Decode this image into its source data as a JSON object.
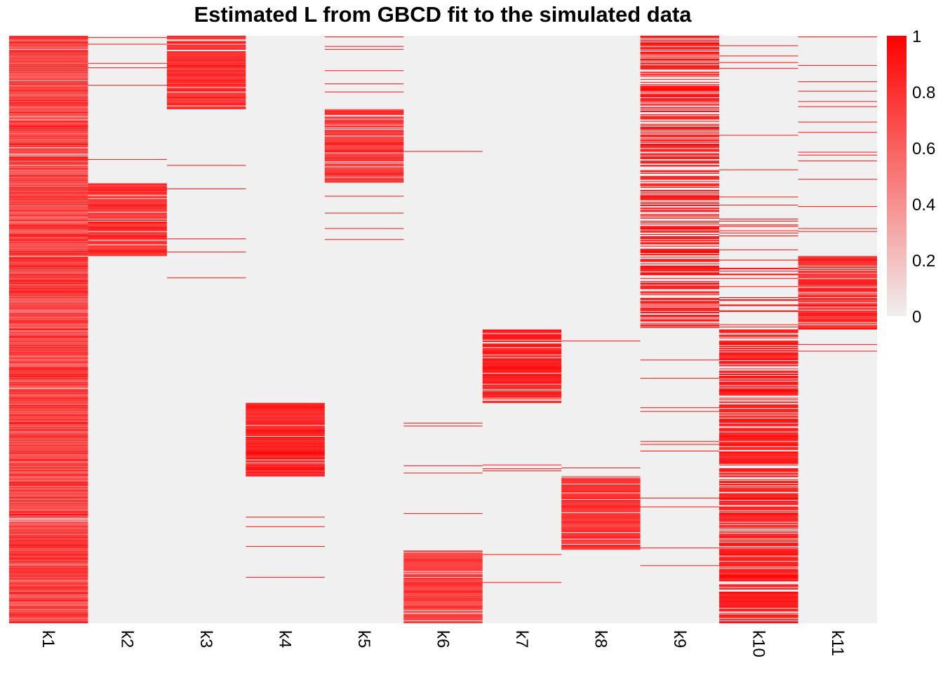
{
  "chart_data": {
    "type": "heatmap",
    "title": "Estimated L from GBCD fit to the simulated data",
    "columns": [
      "k1",
      "k2",
      "k3",
      "k4",
      "k5",
      "k6",
      "k7",
      "k8",
      "k9",
      "k10",
      "k11"
    ],
    "n_rows": 800,
    "value_range": [
      0,
      1
    ],
    "colorscale": {
      "low": "#F0F0F0",
      "high": "#FF0000"
    },
    "legend": {
      "position": "right",
      "tick_labels": [
        "1",
        "0.8",
        "0.6",
        "0.4",
        "0.2",
        "0"
      ],
      "tick_values": [
        1,
        0.8,
        0.6,
        0.4,
        0.2,
        0
      ]
    },
    "blocks": [
      {
        "column": "k1",
        "rows": [
          0,
          800
        ],
        "fill_fraction": 0.97,
        "intensity": [
          0.55,
          0.95
        ]
      },
      {
        "column": "k2",
        "rows": [
          200,
          300
        ],
        "fill_fraction": 0.9,
        "intensity": [
          0.75,
          0.95
        ]
      },
      {
        "column": "k3",
        "rows": [
          0,
          100
        ],
        "fill_fraction": 0.9,
        "intensity": [
          0.75,
          0.95
        ]
      },
      {
        "column": "k4",
        "rows": [
          500,
          600
        ],
        "fill_fraction": 0.95,
        "intensity": [
          0.8,
          1.0
        ]
      },
      {
        "column": "k5",
        "rows": [
          100,
          200
        ],
        "fill_fraction": 0.9,
        "intensity": [
          0.7,
          0.9
        ]
      },
      {
        "column": "k6",
        "rows": [
          700,
          800
        ],
        "fill_fraction": 0.9,
        "intensity": [
          0.65,
          0.85
        ]
      },
      {
        "column": "k7",
        "rows": [
          400,
          500
        ],
        "fill_fraction": 0.92,
        "intensity": [
          0.85,
          1.0
        ]
      },
      {
        "column": "k8",
        "rows": [
          600,
          700
        ],
        "fill_fraction": 0.92,
        "intensity": [
          0.75,
          0.9
        ]
      },
      {
        "column": "k9",
        "rows": [
          0,
          400
        ],
        "fill_fraction": 0.6,
        "intensity": [
          0.85,
          1.0
        ]
      },
      {
        "column": "k10",
        "rows": [
          400,
          800
        ],
        "fill_fraction": 0.75,
        "intensity": [
          0.85,
          1.0
        ]
      },
      {
        "column": "k10",
        "rows": [
          230,
          400
        ],
        "fill_fraction": 0.12,
        "intensity": [
          0.85,
          1.0
        ]
      },
      {
        "column": "k11",
        "rows": [
          300,
          400
        ],
        "fill_fraction": 0.9,
        "intensity": [
          0.75,
          0.95
        ]
      }
    ],
    "sparse_rows": {
      "k2": [
        2,
        11,
        37,
        43,
        67,
        168
      ],
      "k3": [
        176,
        208,
        276,
        294,
        329
      ],
      "k4": [
        655,
        668,
        695,
        737
      ],
      "k5": [
        1,
        14,
        18,
        47,
        65,
        76,
        218,
        241,
        262,
        277
      ],
      "k6": [
        157,
        527,
        531,
        585,
        595,
        650
      ],
      "k7": [
        584,
        589,
        592,
        706,
        744
      ],
      "k8": [
        415,
        588
      ],
      "k9": [
        441,
        466,
        506,
        511,
        552,
        556,
        565,
        629,
        641,
        697,
        721
      ],
      "k10": [
        13,
        27,
        36,
        44,
        135,
        182,
        219
      ],
      "k11": [
        1,
        40,
        62,
        75,
        89,
        96,
        117,
        131,
        158,
        162,
        170,
        195,
        232,
        262,
        266,
        420,
        429
      ]
    }
  }
}
